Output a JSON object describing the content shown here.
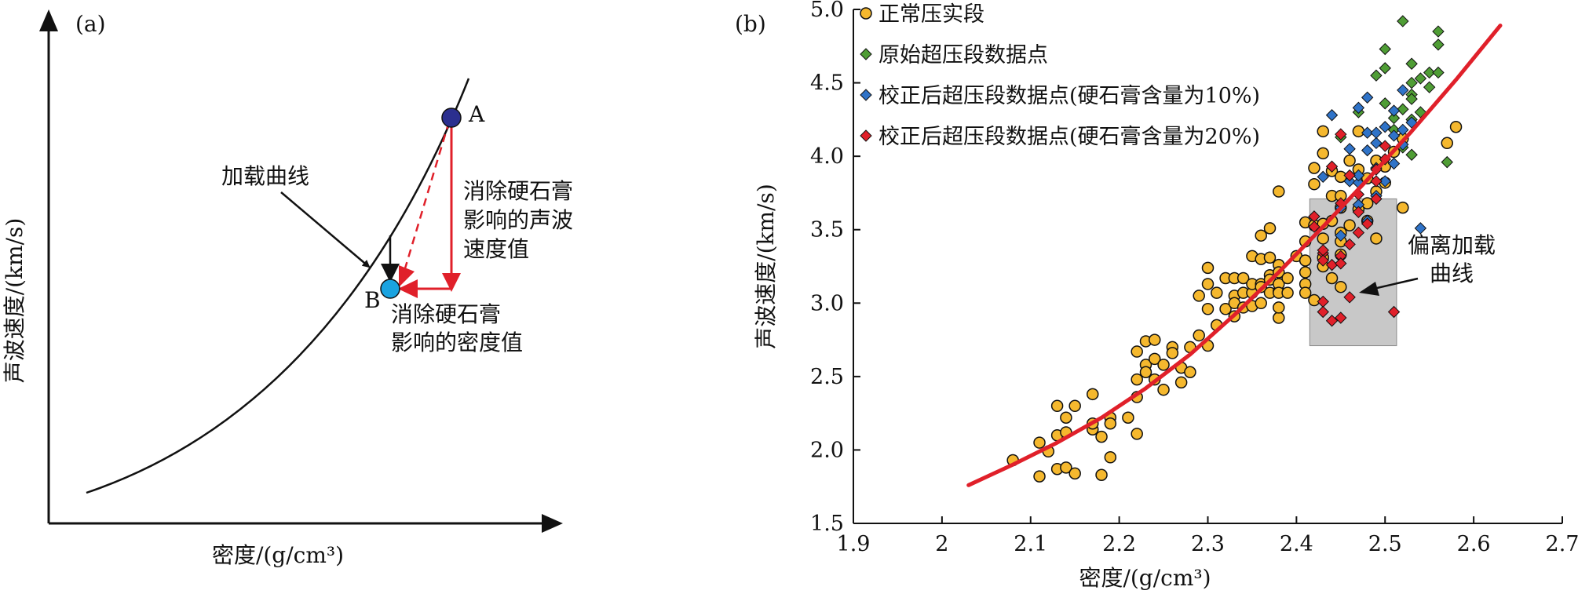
{
  "panel_a": {
    "label": "(a)",
    "xlabel": "密度/(g/cm³)",
    "ylabel": "声波速度/(km/s)",
    "point_a": "A",
    "point_b": "B",
    "loading_curve_label": "加载曲线",
    "velocity_note": [
      "消除硬石膏",
      "影响的声波",
      "速度值"
    ],
    "density_note": [
      "消除硬石膏",
      "影响的密度值"
    ],
    "colors": {
      "point_a": "#2b2f8f",
      "point_b": "#1aa3e0",
      "arrow": "#e0202a"
    }
  },
  "panel_b": {
    "label": "(b)",
    "deviation_label": [
      "偏离加载",
      "曲线"
    ]
  },
  "chart_data": {
    "type": "scatter",
    "xlabel": "密度/(g/cm³)",
    "ylabel": "声波速度/(km/s)",
    "xlim": [
      1.9,
      2.7
    ],
    "ylim": [
      1.5,
      5.0
    ],
    "xticks": [
      "1.9",
      "2",
      "2.1",
      "2.2",
      "2.3",
      "2.4",
      "2.5",
      "2.6",
      "2.7"
    ],
    "yticks": [
      "1.5",
      "2.0",
      "2.5",
      "3.0",
      "3.5",
      "4.0",
      "4.5",
      "5.0"
    ],
    "legend_position": "top-left",
    "highlight_box": {
      "x": [
        2.415,
        2.513
      ],
      "y": [
        2.71,
        3.71
      ]
    },
    "fit_curve": {
      "color": "#e0202a",
      "points": [
        [
          2.03,
          1.76
        ],
        [
          2.08,
          1.9
        ],
        [
          2.13,
          2.05
        ],
        [
          2.18,
          2.22
        ],
        [
          2.23,
          2.42
        ],
        [
          2.28,
          2.65
        ],
        [
          2.33,
          2.92
        ],
        [
          2.38,
          3.21
        ],
        [
          2.43,
          3.52
        ],
        [
          2.48,
          3.84
        ],
        [
          2.53,
          4.17
        ],
        [
          2.58,
          4.52
        ],
        [
          2.63,
          4.89
        ]
      ]
    },
    "series": [
      {
        "name": "正常压实段",
        "marker": "circle",
        "color": "#f5b82e",
        "points": [
          [
            2.08,
            1.93
          ],
          [
            2.11,
            2.05
          ],
          [
            2.11,
            1.82
          ],
          [
            2.12,
            1.99
          ],
          [
            2.13,
            2.3
          ],
          [
            2.13,
            2.1
          ],
          [
            2.13,
            1.87
          ],
          [
            2.14,
            2.22
          ],
          [
            2.14,
            1.88
          ],
          [
            2.14,
            2.12
          ],
          [
            2.15,
            1.84
          ],
          [
            2.15,
            2.3
          ],
          [
            2.17,
            2.38
          ],
          [
            2.17,
            2.14
          ],
          [
            2.17,
            2.18
          ],
          [
            2.18,
            2.09
          ],
          [
            2.18,
            1.83
          ],
          [
            2.19,
            2.22
          ],
          [
            2.19,
            2.18
          ],
          [
            2.19,
            1.95
          ],
          [
            2.21,
            2.22
          ],
          [
            2.22,
            2.36
          ],
          [
            2.22,
            2.11
          ],
          [
            2.22,
            2.48
          ],
          [
            2.22,
            2.67
          ],
          [
            2.23,
            2.58
          ],
          [
            2.23,
            2.53
          ],
          [
            2.23,
            2.74
          ],
          [
            2.24,
            2.48
          ],
          [
            2.24,
            2.62
          ],
          [
            2.24,
            2.75
          ],
          [
            2.25,
            2.41
          ],
          [
            2.25,
            2.58
          ],
          [
            2.26,
            2.7
          ],
          [
            2.26,
            2.66
          ],
          [
            2.27,
            2.46
          ],
          [
            2.27,
            2.56
          ],
          [
            2.28,
            2.53
          ],
          [
            2.28,
            2.7
          ],
          [
            2.29,
            2.78
          ],
          [
            2.29,
            3.05
          ],
          [
            2.3,
            2.71
          ],
          [
            2.3,
            2.96
          ],
          [
            2.3,
            3.13
          ],
          [
            2.3,
            3.24
          ],
          [
            2.31,
            2.85
          ],
          [
            2.31,
            3.07
          ],
          [
            2.32,
            3.17
          ],
          [
            2.32,
            2.96
          ],
          [
            2.33,
            3.05
          ],
          [
            2.33,
            2.91
          ],
          [
            2.33,
            3.0
          ],
          [
            2.33,
            3.17
          ],
          [
            2.34,
            3.07
          ],
          [
            2.34,
            3.17
          ],
          [
            2.34,
            2.97
          ],
          [
            2.35,
            2.98
          ],
          [
            2.35,
            3.07
          ],
          [
            2.35,
            3.32
          ],
          [
            2.35,
            3.13
          ],
          [
            2.36,
            3.13
          ],
          [
            2.36,
            3.3
          ],
          [
            2.36,
            3.46
          ],
          [
            2.36,
            3.11
          ],
          [
            2.36,
            3.0
          ],
          [
            2.37,
            3.07
          ],
          [
            2.37,
            3.19
          ],
          [
            2.37,
            3.51
          ],
          [
            2.37,
            3.16
          ],
          [
            2.37,
            3.31
          ],
          [
            2.38,
            3.26
          ],
          [
            2.38,
            2.9
          ],
          [
            2.38,
            3.08
          ],
          [
            2.38,
            3.21
          ],
          [
            2.38,
            3.76
          ],
          [
            2.38,
            3.13
          ],
          [
            2.38,
            2.97
          ],
          [
            2.38,
            3.07
          ],
          [
            2.39,
            3.07
          ],
          [
            2.39,
            3.17
          ],
          [
            2.4,
            3.32
          ],
          [
            2.41,
            3.13
          ],
          [
            2.41,
            3.42
          ],
          [
            2.41,
            3.21
          ],
          [
            2.41,
            3.55
          ],
          [
            2.41,
            3.07
          ],
          [
            2.41,
            3.29
          ],
          [
            2.42,
            3.81
          ],
          [
            2.42,
            3.02
          ],
          [
            2.42,
            3.53
          ],
          [
            2.42,
            3.92
          ],
          [
            2.43,
            3.25
          ],
          [
            2.43,
            3.44
          ],
          [
            2.43,
            3.31
          ],
          [
            2.43,
            3.54
          ],
          [
            2.43,
            4.02
          ],
          [
            2.43,
            4.17
          ],
          [
            2.44,
            3.17
          ],
          [
            2.44,
            3.56
          ],
          [
            2.44,
            3.73
          ],
          [
            2.44,
            3.9
          ],
          [
            2.45,
            3.48
          ],
          [
            2.45,
            3.73
          ],
          [
            2.45,
            3.33
          ],
          [
            2.45,
            3.86
          ],
          [
            2.45,
            3.11
          ],
          [
            2.45,
            3.42
          ],
          [
            2.45,
            3.65
          ],
          [
            2.46,
            3.53
          ],
          [
            2.46,
            3.97
          ],
          [
            2.47,
            3.91
          ],
          [
            2.47,
            3.64
          ],
          [
            2.47,
            4.17
          ],
          [
            2.48,
            3.56
          ],
          [
            2.48,
            3.85
          ],
          [
            2.48,
            3.68
          ],
          [
            2.49,
            3.97
          ],
          [
            2.49,
            3.44
          ],
          [
            2.49,
            3.76
          ],
          [
            2.5,
            3.82
          ],
          [
            2.5,
            3.93
          ],
          [
            2.51,
            4.03
          ],
          [
            2.52,
            3.65
          ],
          [
            2.52,
            4.12
          ],
          [
            2.57,
            4.09
          ],
          [
            2.58,
            4.2
          ]
        ]
      },
      {
        "name": "原始超压段数据点",
        "marker": "diamond",
        "color": "#4f9d35",
        "points": [
          [
            2.45,
            4.13
          ],
          [
            2.47,
            4.3
          ],
          [
            2.49,
            4.55
          ],
          [
            2.5,
            4.36
          ],
          [
            2.5,
            4.73
          ],
          [
            2.5,
            4.6
          ],
          [
            2.51,
            4.18
          ],
          [
            2.51,
            4.26
          ],
          [
            2.52,
            4.06
          ],
          [
            2.52,
            4.32
          ],
          [
            2.53,
            4.42
          ],
          [
            2.53,
            4.5
          ],
          [
            2.53,
            4.25
          ],
          [
            2.53,
            4.39
          ],
          [
            2.53,
            4.01
          ],
          [
            2.53,
            4.63
          ],
          [
            2.54,
            4.53
          ],
          [
            2.54,
            4.3
          ],
          [
            2.55,
            4.47
          ],
          [
            2.55,
            4.57
          ],
          [
            2.56,
            4.85
          ],
          [
            2.56,
            4.76
          ],
          [
            2.56,
            4.57
          ],
          [
            2.57,
            3.96
          ],
          [
            2.52,
            4.92
          ]
        ]
      },
      {
        "name": "校正后超压段数据点(硬石膏含量为10%)",
        "marker": "diamond",
        "color": "#2f73c8",
        "points": [
          [
            2.43,
            3.86
          ],
          [
            2.44,
            4.28
          ],
          [
            2.45,
            3.46
          ],
          [
            2.45,
            3.65
          ],
          [
            2.46,
            3.83
          ],
          [
            2.46,
            4.05
          ],
          [
            2.47,
            4.33
          ],
          [
            2.47,
            3.82
          ],
          [
            2.47,
            3.67
          ],
          [
            2.47,
            3.87
          ],
          [
            2.48,
            4.16
          ],
          [
            2.48,
            4.4
          ],
          [
            2.48,
            3.56
          ],
          [
            2.48,
            4.04
          ],
          [
            2.49,
            3.73
          ],
          [
            2.49,
            4.09
          ],
          [
            2.49,
            3.92
          ],
          [
            2.49,
            4.16
          ],
          [
            2.5,
            4.2
          ],
          [
            2.5,
            3.83
          ],
          [
            2.51,
            4.31
          ],
          [
            2.51,
            3.95
          ],
          [
            2.51,
            4.14
          ],
          [
            2.52,
            4.18
          ],
          [
            2.52,
            4.08
          ],
          [
            2.52,
            4.45
          ],
          [
            2.53,
            4.23
          ],
          [
            2.54,
            3.51
          ]
        ]
      },
      {
        "name": "校正后超压段数据点(硬石膏含量为20%)",
        "marker": "diamond",
        "color": "#e0202a",
        "points": [
          [
            2.42,
            3.59
          ],
          [
            2.42,
            3.52
          ],
          [
            2.43,
            3.34
          ],
          [
            2.43,
            3.36
          ],
          [
            2.43,
            3.29
          ],
          [
            2.43,
            3.01
          ],
          [
            2.43,
            2.94
          ],
          [
            2.44,
            3.93
          ],
          [
            2.44,
            3.26
          ],
          [
            2.44,
            2.88
          ],
          [
            2.45,
            4.15
          ],
          [
            2.45,
            3.68
          ],
          [
            2.45,
            3.32
          ],
          [
            2.45,
            3.27
          ],
          [
            2.45,
            2.9
          ],
          [
            2.46,
            3.04
          ],
          [
            2.46,
            3.87
          ],
          [
            2.46,
            3.4
          ],
          [
            2.47,
            3.74
          ],
          [
            2.47,
            3.62
          ],
          [
            2.47,
            3.48
          ],
          [
            2.48,
            3.54
          ],
          [
            2.49,
            3.83
          ],
          [
            2.49,
            3.71
          ],
          [
            2.49,
            3.91
          ],
          [
            2.5,
            3.98
          ],
          [
            2.5,
            4.07
          ],
          [
            2.51,
            2.94
          ]
        ]
      }
    ]
  }
}
